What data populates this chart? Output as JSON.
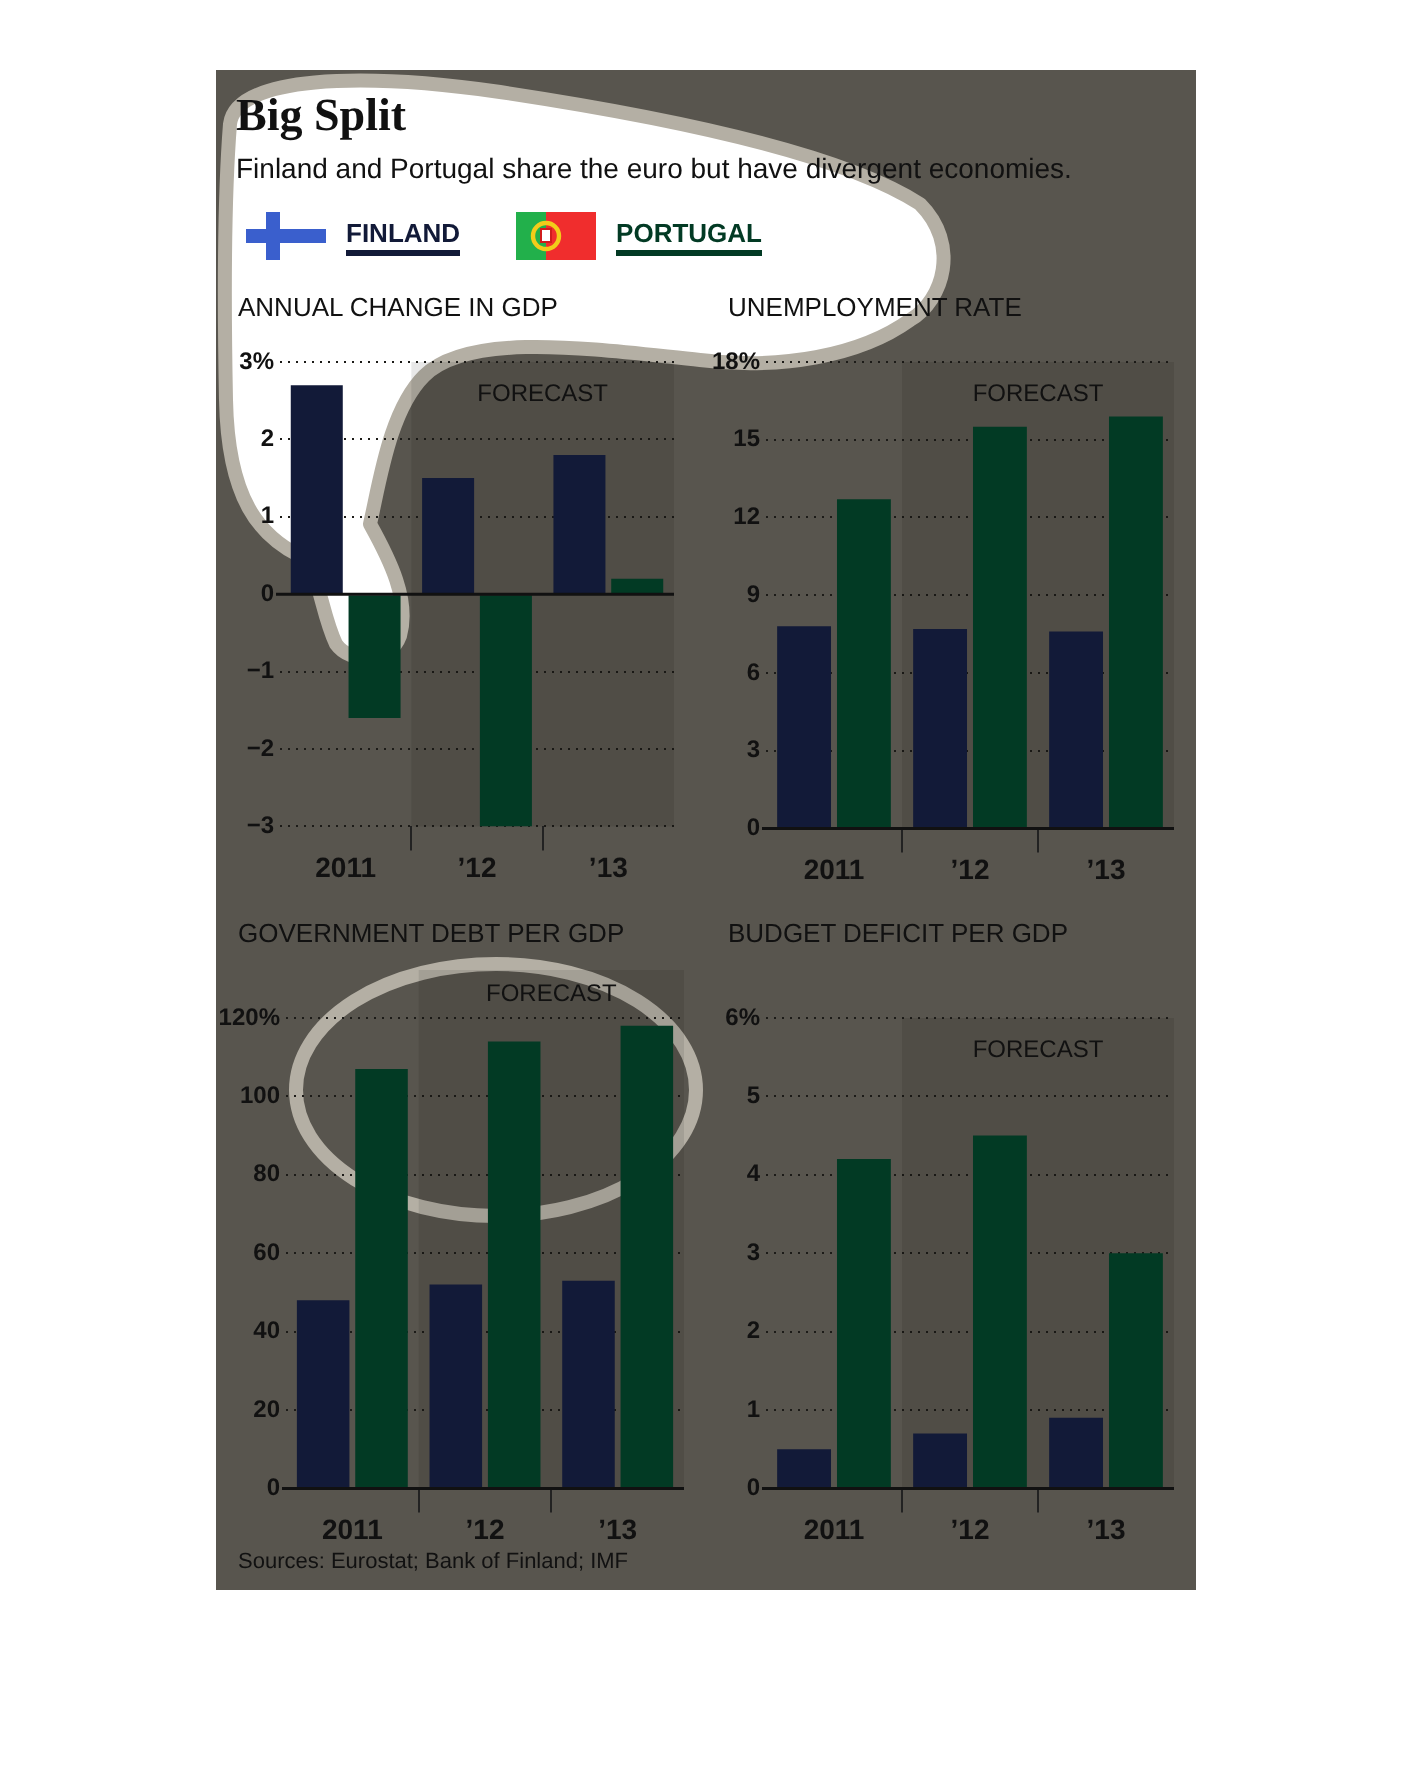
{
  "chart_data": [
    {
      "type": "other",
      "title": "Big Split",
      "subtitle": "Finland and Portugal share the euro but have divergent economies."
    },
    {
      "type": "bar",
      "title": "ANNUAL CHANGE IN GDP",
      "categories": [
        "2011",
        "’12",
        "’13"
      ],
      "series": [
        {
          "name": "FINLAND",
          "color": "#121a38",
          "values": [
            2.7,
            1.5,
            1.8
          ]
        },
        {
          "name": "PORTUGAL",
          "color": "#023a24",
          "values": [
            -1.6,
            -3.0,
            0.2
          ]
        }
      ],
      "ylim": [
        -3,
        3
      ],
      "yticks": [
        {
          "value": -3,
          "label": "−3"
        },
        {
          "value": -2,
          "label": "−2"
        },
        {
          "value": -1,
          "label": "−1"
        },
        0,
        1,
        2,
        {
          "value": 3,
          "label": "3%"
        }
      ],
      "grid": "y",
      "legend": "top",
      "bands": [
        {
          "axis": "x",
          "from": "’12",
          "to": "’13",
          "label": "FORECAST"
        }
      ]
    },
    {
      "type": "bar",
      "title": "UNEMPLOYMENT RATE",
      "categories": [
        "2011",
        "’12",
        "’13"
      ],
      "series": [
        {
          "color": "#121a38",
          "values": [
            7.8,
            7.7,
            7.6
          ]
        },
        {
          "color": "#023a24",
          "values": [
            12.7,
            15.5,
            15.9
          ]
        }
      ],
      "ylim": [
        0,
        18
      ],
      "yticks": [
        0,
        3,
        6,
        9,
        12,
        15,
        {
          "value": 18,
          "label": "18%"
        }
      ],
      "grid": "y",
      "bands": [
        {
          "axis": "x",
          "from": "’12",
          "to": "’13",
          "label": "FORECAST"
        }
      ]
    },
    {
      "type": "bar",
      "title": "GOVERNMENT DEBT PER GDP",
      "categories": [
        "2011",
        "’12",
        "’13"
      ],
      "series": [
        {
          "color": "#121a38",
          "values": [
            48,
            52,
            53
          ]
        },
        {
          "color": "#023a24",
          "values": [
            107,
            114,
            118
          ]
        }
      ],
      "ylim": [
        0,
        120
      ],
      "yticks": [
        0,
        20,
        40,
        60,
        80,
        100,
        {
          "value": 120,
          "label": "120%"
        }
      ],
      "grid": "y",
      "bands": [
        {
          "axis": "x",
          "from": "’12",
          "to": "’13",
          "label": "FORECAST"
        }
      ],
      "annotations": [
        "Sources: Eurostat; Bank of Finland; IMF"
      ]
    },
    {
      "type": "bar",
      "title": "BUDGET DEFICIT PER GDP",
      "categories": [
        "2011",
        "’12",
        "’13"
      ],
      "series": [
        {
          "color": "#121a38",
          "values": [
            0.5,
            0.7,
            0.9
          ]
        },
        {
          "color": "#023a24",
          "values": [
            4.2,
            4.5,
            3.0
          ]
        }
      ],
      "ylim": [
        0,
        6
      ],
      "yticks": [
        0,
        1,
        2,
        3,
        4,
        5,
        {
          "value": 6,
          "label": "6%"
        }
      ],
      "grid": "y",
      "bands": [
        {
          "axis": "x",
          "from": "’12",
          "to": "’13",
          "label": "FORECAST"
        }
      ]
    }
  ]
}
